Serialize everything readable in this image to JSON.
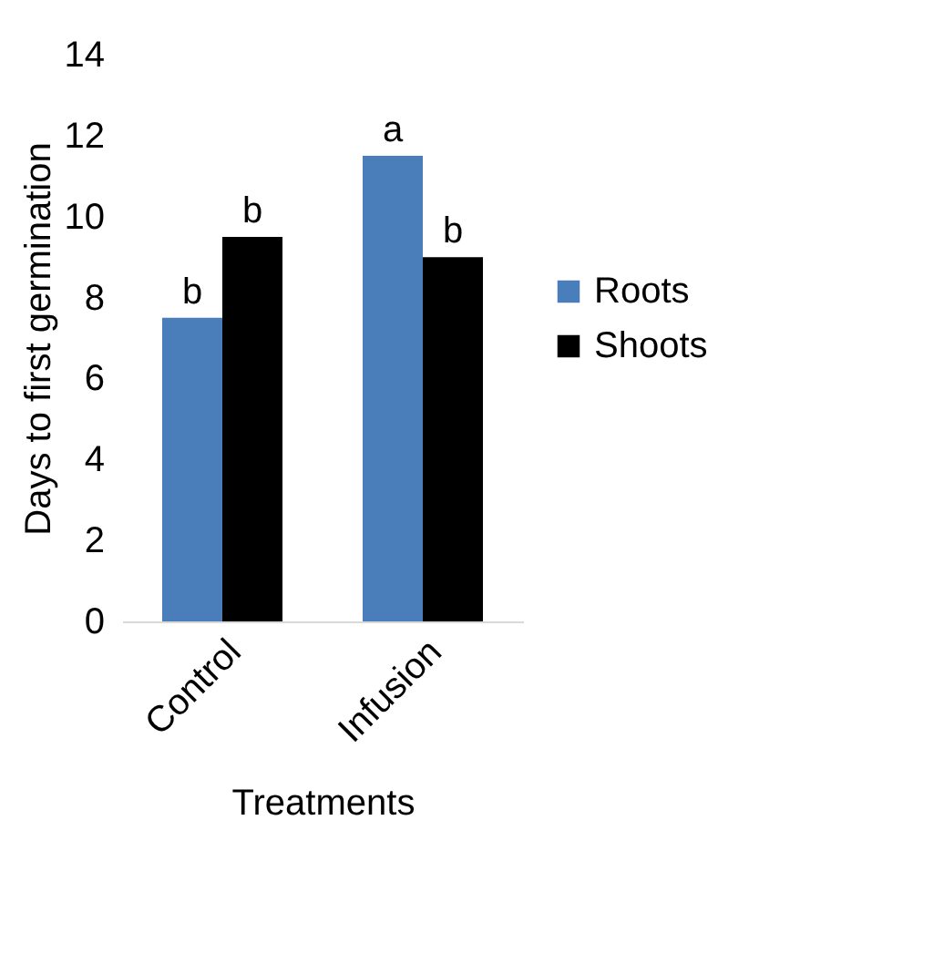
{
  "chart_data": {
    "type": "bar",
    "xlabel": "Treatments",
    "ylabel": "Days to first germination",
    "categories": [
      "Control",
      "Infusion"
    ],
    "series": [
      {
        "name": "Roots",
        "color": "#4a7ebb",
        "values": [
          7.5,
          11.5
        ],
        "value_labels": [
          "b",
          "a"
        ]
      },
      {
        "name": "Shoots",
        "color": "#000000",
        "values": [
          9.5,
          9
        ],
        "value_labels": [
          "b",
          "b"
        ]
      }
    ],
    "ylim": [
      0,
      14
    ],
    "yticks": [
      0,
      2,
      4,
      6,
      8,
      10,
      12,
      14
    ],
    "grid": false,
    "legend": "right"
  }
}
